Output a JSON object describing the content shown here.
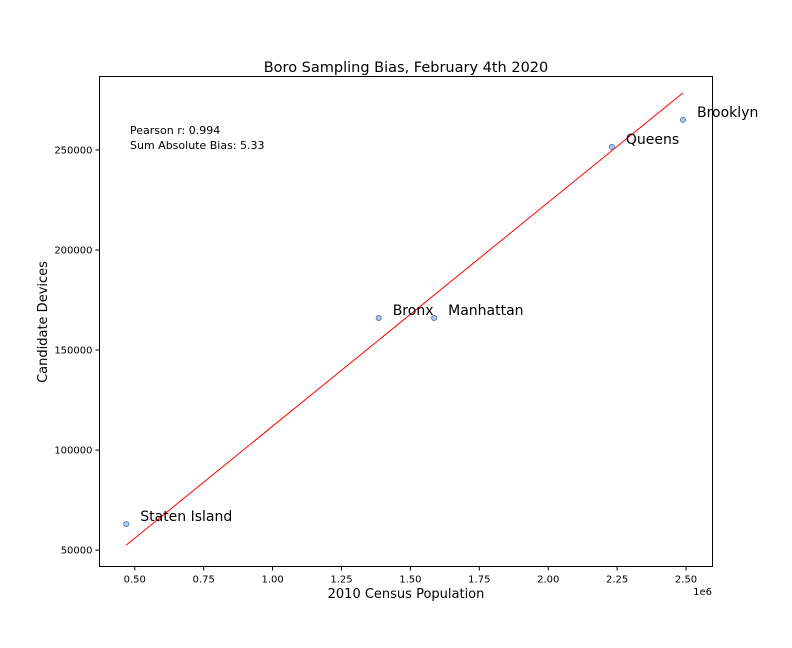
{
  "chart_data": {
    "type": "scatter",
    "title": "Boro Sampling Bias, February 4th 2020",
    "xlabel": "2010 Census Population",
    "ylabel": "Candidate Devices",
    "x_offset_label": "1e6",
    "xlim": [
      0.372,
      2.596
    ],
    "ylim": [
      41800,
      286700
    ],
    "x_ticks": [
      0.5,
      0.75,
      1.0,
      1.25,
      1.5,
      1.75,
      2.0,
      2.25,
      2.5
    ],
    "x_tick_labels": [
      "0.50",
      "0.75",
      "1.00",
      "1.25",
      "1.50",
      "1.75",
      "2.00",
      "2.25",
      "2.50"
    ],
    "y_ticks": [
      50000,
      100000,
      150000,
      200000,
      250000
    ],
    "y_tick_labels": [
      "50000",
      "100000",
      "150000",
      "200000",
      "250000"
    ],
    "points": [
      {
        "label": "Staten Island",
        "x": 0.469,
        "y": 63000
      },
      {
        "label": "Bronx",
        "x": 1.385,
        "y": 166000
      },
      {
        "label": "Manhattan",
        "x": 1.586,
        "y": 166000
      },
      {
        "label": "Queens",
        "x": 2.231,
        "y": 251500
      },
      {
        "label": "Brooklyn",
        "x": 2.489,
        "y": 265000
      }
    ],
    "fit_line": {
      "x": [
        0.469,
        2.489
      ],
      "y": [
        52500,
        278500
      ],
      "color": "#ff0000"
    },
    "point_color": "#aec7e8",
    "point_edge_color": "#4c72b0",
    "annotations": [
      "Pearson r: 0.994",
      "Sum Absolute Bias: 5.33"
    ],
    "grid": false,
    "legend": "none"
  }
}
